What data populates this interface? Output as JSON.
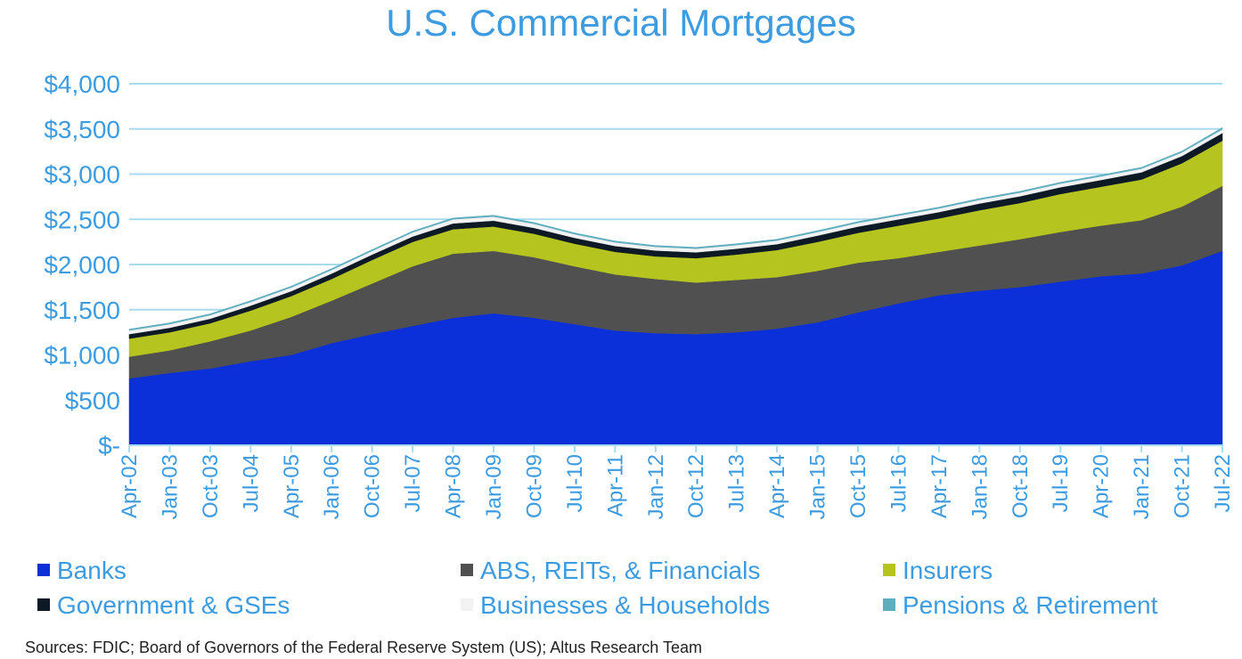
{
  "chart_data": {
    "type": "area",
    "title": "U.S. Commercial Mortgages",
    "xlabel": "",
    "ylabel": "",
    "ylim": [
      0,
      4000
    ],
    "y_ticks": [
      0,
      500,
      1000,
      1500,
      2000,
      2500,
      3000,
      3500,
      4000
    ],
    "y_tick_labels": [
      "$-",
      "$500",
      "$1,000",
      "$1,500",
      "$2,000",
      "$2,500",
      "$3,000",
      "$3,500",
      "$4,000"
    ],
    "x_tick_labels": [
      "Apr-02",
      "Jan-03",
      "Oct-03",
      "Jul-04",
      "Apr-05",
      "Jan-06",
      "Oct-06",
      "Jul-07",
      "Apr-08",
      "Jan-09",
      "Oct-09",
      "Jul-10",
      "Apr-11",
      "Jan-12",
      "Oct-12",
      "Jul-13",
      "Apr-14",
      "Jan-15",
      "Oct-15",
      "Jul-16",
      "Apr-17",
      "Jan-18",
      "Oct-18",
      "Jul-19",
      "Apr-20",
      "Jan-21",
      "Oct-21",
      "Jul-22"
    ],
    "stacked": true,
    "grid": "horizontal",
    "legend_position": "bottom",
    "series": [
      {
        "name": "Banks",
        "color": "#0b2fd9",
        "values": [
          740,
          800,
          850,
          930,
          1000,
          1130,
          1230,
          1320,
          1410,
          1460,
          1410,
          1340,
          1270,
          1240,
          1230,
          1250,
          1290,
          1360,
          1470,
          1570,
          1660,
          1710,
          1750,
          1810,
          1870,
          1900,
          1990,
          2150
        ]
      },
      {
        "name": "ABS, REITs, & Financials",
        "color": "#505050",
        "values": [
          240,
          250,
          300,
          340,
          420,
          470,
          560,
          660,
          710,
          690,
          670,
          640,
          620,
          600,
          570,
          580,
          570,
          570,
          550,
          500,
          480,
          500,
          530,
          550,
          560,
          590,
          650,
          720
        ]
      },
      {
        "name": "Insurers",
        "color": "#b5c41f",
        "values": [
          200,
          200,
          200,
          220,
          230,
          240,
          260,
          270,
          270,
          270,
          260,
          250,
          250,
          250,
          270,
          280,
          300,
          320,
          330,
          360,
          370,
          390,
          400,
          420,
          430,
          450,
          480,
          500
        ]
      },
      {
        "name": "Government & GSEs",
        "color": "#0d1a26",
        "values": [
          50,
          50,
          50,
          55,
          55,
          60,
          60,
          60,
          65,
          65,
          65,
          65,
          65,
          65,
          65,
          65,
          65,
          70,
          70,
          70,
          70,
          75,
          75,
          75,
          75,
          80,
          80,
          85
        ]
      },
      {
        "name": "Businesses & Households",
        "color": "#f2f2f2",
        "values": [
          40,
          40,
          40,
          40,
          40,
          40,
          40,
          45,
          45,
          45,
          45,
          40,
          40,
          40,
          40,
          40,
          40,
          40,
          40,
          40,
          40,
          40,
          40,
          40,
          40,
          40,
          40,
          40
        ]
      },
      {
        "name": "Pensions & Retirement",
        "color": "#5eaebf",
        "values": [
          15,
          15,
          15,
          15,
          15,
          15,
          15,
          15,
          15,
          15,
          15,
          15,
          15,
          15,
          15,
          15,
          15,
          15,
          15,
          15,
          15,
          15,
          15,
          15,
          15,
          15,
          15,
          20
        ]
      }
    ]
  },
  "source_note": "Sources: FDIC; Board of Governors of the Federal Reserve System (US); Altus Research Team",
  "colors": {
    "text_accent": "#3d9be0",
    "gridline": "#a8dbee"
  }
}
